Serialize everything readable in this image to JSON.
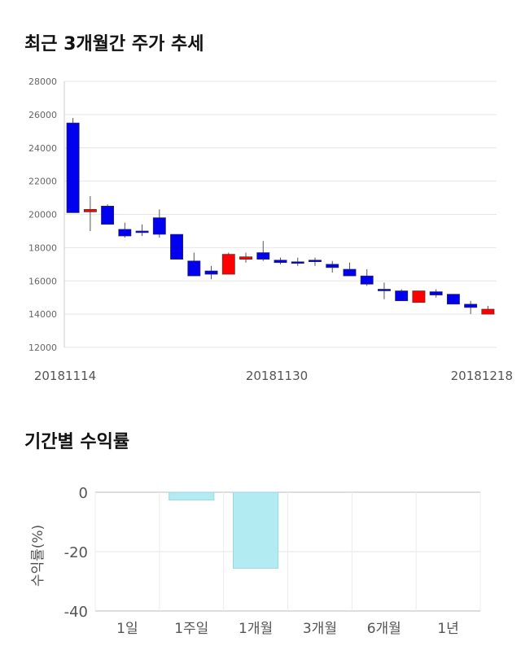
{
  "titles": {
    "price_trend": "최근 3개월간 주가 추세",
    "period_returns": "기간별 수익률"
  },
  "colors": {
    "up": "#ff0000",
    "down": "#0000ee",
    "return_bar": "#b2ebf2",
    "return_bar_stroke": "#9fd6de"
  },
  "chart_data": [
    {
      "type": "candlestick",
      "ylim": [
        12000,
        28000
      ],
      "yticks": [
        "28000",
        "26000",
        "24000",
        "22000",
        "20000",
        "18000",
        "16000",
        "14000",
        "12000"
      ],
      "x_labels": [
        "20181114",
        "20181130",
        "20181218"
      ],
      "grid": true,
      "candles": [
        {
          "o": 25500,
          "c": 20100,
          "h": 25800,
          "l": 20100
        },
        {
          "o": 20150,
          "c": 20300,
          "h": 21100,
          "l": 19000
        },
        {
          "o": 20500,
          "c": 19400,
          "h": 20600,
          "l": 19400
        },
        {
          "o": 19100,
          "c": 18700,
          "h": 19500,
          "l": 18600
        },
        {
          "o": 19000,
          "c": 19000,
          "h": 19400,
          "l": 18700
        },
        {
          "o": 19800,
          "c": 18800,
          "h": 20300,
          "l": 18600
        },
        {
          "o": 18800,
          "c": 17300,
          "h": 18800,
          "l": 17300
        },
        {
          "o": 17200,
          "c": 16300,
          "h": 17700,
          "l": 16300
        },
        {
          "o": 16600,
          "c": 16400,
          "h": 16900,
          "l": 16100
        },
        {
          "o": 16400,
          "c": 17600,
          "h": 17700,
          "l": 16400
        },
        {
          "o": 17300,
          "c": 17450,
          "h": 17700,
          "l": 17100
        },
        {
          "o": 17700,
          "c": 17300,
          "h": 18400,
          "l": 17200
        },
        {
          "o": 17250,
          "c": 17100,
          "h": 17400,
          "l": 17000
        },
        {
          "o": 17150,
          "c": 17100,
          "h": 17400,
          "l": 16900
        },
        {
          "o": 17250,
          "c": 17200,
          "h": 17400,
          "l": 16900
        },
        {
          "o": 17000,
          "c": 16800,
          "h": 17200,
          "l": 16500
        },
        {
          "o": 16700,
          "c": 16300,
          "h": 17100,
          "l": 16300
        },
        {
          "o": 16300,
          "c": 15800,
          "h": 16700,
          "l": 15700
        },
        {
          "o": 15500,
          "c": 15400,
          "h": 15900,
          "l": 14900
        },
        {
          "o": 15400,
          "c": 14800,
          "h": 15500,
          "l": 14800
        },
        {
          "o": 14700,
          "c": 15400,
          "h": 15400,
          "l": 14700
        },
        {
          "o": 15350,
          "c": 15150,
          "h": 15500,
          "l": 15000
        },
        {
          "o": 15200,
          "c": 14600,
          "h": 15200,
          "l": 14600
        },
        {
          "o": 14600,
          "c": 14400,
          "h": 14800,
          "l": 14000
        },
        {
          "o": 14000,
          "c": 14300,
          "h": 14500,
          "l": 14000
        }
      ]
    },
    {
      "type": "bar",
      "ylabel": "수익률(%)",
      "ylim": [
        -40,
        0
      ],
      "yticks": [
        "0",
        "-20",
        "-40"
      ],
      "categories": [
        "1일",
        "1주일",
        "1개월",
        "3개월",
        "6개월",
        "1년"
      ],
      "values": [
        0,
        -2.6,
        -25.6,
        0,
        0,
        0
      ]
    }
  ]
}
